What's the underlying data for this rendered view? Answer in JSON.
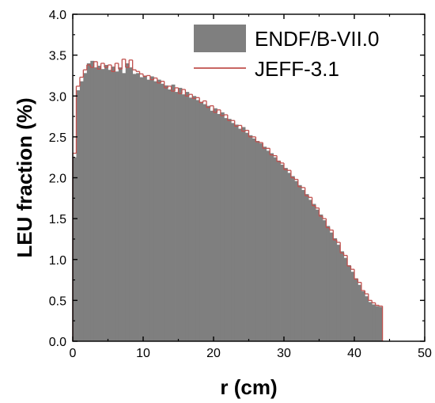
{
  "chart_data": {
    "type": "area",
    "xlabel": "r (cm)",
    "ylabel": "LEU fraction (%)",
    "xlim": [
      0,
      50
    ],
    "ylim": [
      0,
      4.0
    ],
    "x_ticks": [
      "0",
      "10",
      "20",
      "30",
      "40",
      "50"
    ],
    "y_ticks": [
      "0.0",
      "0.5",
      "1.0",
      "1.5",
      "2.0",
      "2.5",
      "3.0",
      "3.5",
      "4.0"
    ],
    "grid": false,
    "legend_position": "top-right",
    "series": [
      {
        "name": "ENDF/B-VII.0",
        "style": "filled-histogram",
        "color": "#7f7f7f",
        "x": [
          0,
          0.5,
          1,
          1.5,
          2,
          2.5,
          3,
          3.5,
          4,
          4.5,
          5,
          5.5,
          6,
          6.5,
          7,
          7.5,
          8,
          8.5,
          9,
          9.5,
          10,
          10.5,
          11,
          11.5,
          12,
          12.5,
          13,
          13.5,
          14,
          14.5,
          15,
          15.5,
          16,
          16.5,
          17,
          17.5,
          18,
          18.5,
          19,
          19.5,
          20,
          20.5,
          21,
          21.5,
          22,
          22.5,
          23,
          23.5,
          24,
          24.5,
          25,
          25.5,
          26,
          26.5,
          27,
          27.5,
          28,
          28.5,
          29,
          29.5,
          30,
          30.5,
          31,
          31.5,
          32,
          32.5,
          33,
          33.5,
          34,
          34.5,
          35,
          35.5,
          36,
          36.5,
          37,
          37.5,
          38,
          38.5,
          39,
          39.5,
          40,
          40.5,
          41,
          41.5,
          42,
          42.5,
          43,
          43.5
        ],
        "values": [
          2.25,
          3.07,
          3.18,
          3.28,
          3.4,
          3.43,
          3.35,
          3.37,
          3.33,
          3.38,
          3.32,
          3.36,
          3.3,
          3.35,
          3.28,
          3.4,
          3.35,
          3.27,
          3.28,
          3.23,
          3.25,
          3.2,
          3.24,
          3.18,
          3.2,
          3.15,
          3.13,
          3.08,
          3.14,
          3.05,
          3.1,
          3.02,
          3.05,
          2.98,
          3.0,
          2.95,
          2.93,
          2.9,
          2.88,
          2.82,
          2.85,
          2.78,
          2.8,
          2.73,
          2.72,
          2.67,
          2.65,
          2.6,
          2.62,
          2.55,
          2.52,
          2.48,
          2.45,
          2.42,
          2.38,
          2.33,
          2.3,
          2.25,
          2.21,
          2.16,
          2.12,
          2.06,
          2.02,
          1.96,
          1.91,
          1.85,
          1.8,
          1.73,
          1.68,
          1.61,
          1.55,
          1.48,
          1.41,
          1.33,
          1.26,
          1.18,
          1.1,
          1.02,
          0.93,
          0.85,
          0.77,
          0.69,
          0.61,
          0.55,
          0.48,
          0.45,
          0.43,
          0.42
        ]
      },
      {
        "name": "JEFF-3.1",
        "style": "step-line",
        "color": "#c0504d",
        "x": [
          0,
          0.5,
          1,
          1.5,
          2,
          2.5,
          3,
          3.5,
          4,
          4.5,
          5,
          5.5,
          6,
          6.5,
          7,
          7.5,
          8,
          8.5,
          9,
          9.5,
          10,
          10.5,
          11,
          11.5,
          12,
          12.5,
          13,
          13.5,
          14,
          14.5,
          15,
          15.5,
          16,
          16.5,
          17,
          17.5,
          18,
          18.5,
          19,
          19.5,
          20,
          20.5,
          21,
          21.5,
          22,
          22.5,
          23,
          23.5,
          24,
          24.5,
          25,
          25.5,
          26,
          26.5,
          27,
          27.5,
          28,
          28.5,
          29,
          29.5,
          30,
          30.5,
          31,
          31.5,
          32,
          32.5,
          33,
          33.5,
          34,
          34.5,
          35,
          35.5,
          36,
          36.5,
          37,
          37.5,
          38,
          38.5,
          39,
          39.5,
          40,
          40.5,
          41,
          41.5,
          42,
          42.5,
          43,
          43.5
        ],
        "values": [
          2.3,
          3.12,
          3.23,
          3.32,
          3.38,
          3.35,
          3.42,
          3.33,
          3.4,
          3.35,
          3.38,
          3.3,
          3.4,
          3.33,
          3.45,
          3.35,
          3.44,
          3.32,
          3.3,
          3.27,
          3.24,
          3.25,
          3.2,
          3.22,
          3.16,
          3.18,
          3.1,
          3.12,
          3.06,
          3.1,
          3.03,
          3.08,
          3.0,
          3.02,
          2.97,
          2.98,
          2.92,
          2.94,
          2.86,
          2.88,
          2.8,
          2.83,
          2.76,
          2.77,
          2.7,
          2.7,
          2.63,
          2.64,
          2.57,
          2.58,
          2.5,
          2.5,
          2.44,
          2.43,
          2.36,
          2.36,
          2.28,
          2.27,
          2.2,
          2.18,
          2.1,
          2.09,
          2.0,
          1.98,
          1.89,
          1.88,
          1.78,
          1.76,
          1.66,
          1.63,
          1.53,
          1.5,
          1.39,
          1.36,
          1.24,
          1.21,
          1.08,
          1.05,
          0.92,
          0.88,
          0.76,
          0.72,
          0.62,
          0.58,
          0.5,
          0.47,
          0.44,
          0.43
        ]
      }
    ],
    "bin_width": 0.5
  }
}
